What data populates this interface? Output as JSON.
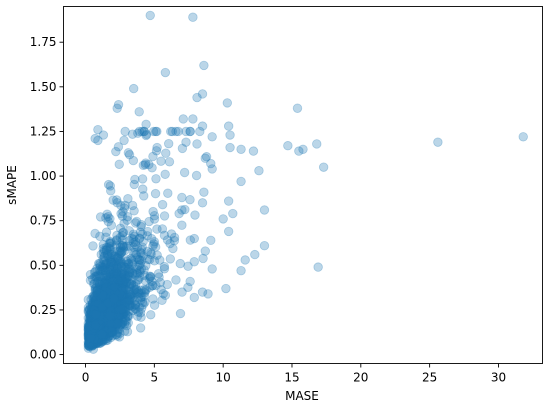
{
  "chart_data": {
    "type": "scatter",
    "title": "",
    "xlabel": "MASE",
    "ylabel": "sMAPE",
    "xlim": [
      -1.6,
      33.2
    ],
    "ylim": [
      -0.05,
      1.95
    ],
    "xticks": [
      0,
      5,
      10,
      15,
      20,
      25,
      30
    ],
    "yticks": [
      0.0,
      0.25,
      0.5,
      0.75,
      1.0,
      1.25,
      1.5,
      1.75
    ],
    "xtick_labels": [
      "0",
      "5",
      "10",
      "15",
      "20",
      "25",
      "30"
    ],
    "ytick_labels": [
      "0.00",
      "0.25",
      "0.50",
      "0.75",
      "1.00",
      "1.25",
      "1.50",
      "1.75"
    ],
    "grid": false,
    "marker_color": "#1f77b4",
    "marker_alpha": 0.3,
    "points": [
      [
        4.7,
        1.9
      ],
      [
        7.8,
        1.89
      ],
      [
        8.6,
        1.62
      ],
      [
        5.8,
        1.58
      ],
      [
        3.5,
        1.49
      ],
      [
        8.5,
        1.46
      ],
      [
        8.1,
        1.44
      ],
      [
        10.3,
        1.41
      ],
      [
        2.4,
        1.4
      ],
      [
        2.3,
        1.38
      ],
      [
        15.4,
        1.38
      ],
      [
        3.9,
        1.36
      ],
      [
        7.1,
        1.32
      ],
      [
        7.8,
        1.32
      ],
      [
        4.4,
        1.29
      ],
      [
        8.5,
        1.28
      ],
      [
        10.4,
        1.28
      ],
      [
        0.9,
        1.26
      ],
      [
        7.3,
        1.25
      ],
      [
        3.8,
        1.24
      ],
      [
        1.3,
        1.23
      ],
      [
        10.5,
        1.23
      ],
      [
        31.8,
        1.22
      ],
      [
        0.7,
        1.21
      ],
      [
        0.9,
        1.2
      ],
      [
        9.2,
        1.22
      ],
      [
        2.8,
        1.2
      ],
      [
        7.3,
        1.19
      ],
      [
        25.6,
        1.19
      ],
      [
        8.1,
        1.18
      ],
      [
        16.8,
        1.18
      ],
      [
        14.7,
        1.17
      ],
      [
        5.2,
        1.16
      ],
      [
        11.3,
        1.15
      ],
      [
        12.2,
        1.14
      ],
      [
        15.5,
        1.14
      ],
      [
        15.8,
        1.15
      ],
      [
        10.5,
        1.16
      ],
      [
        3.2,
        1.12
      ],
      [
        4.9,
        1.11
      ],
      [
        8.7,
        1.1
      ],
      [
        6.1,
        1.08
      ],
      [
        9.1,
        1.07
      ],
      [
        4.2,
        1.06
      ],
      [
        17.3,
        1.05
      ],
      [
        9.2,
        1.04
      ],
      [
        12.6,
        1.03
      ],
      [
        7.2,
        1.02
      ],
      [
        11.3,
        0.97
      ],
      [
        8.6,
        0.91
      ],
      [
        7.0,
        0.88
      ],
      [
        10.4,
        0.86
      ],
      [
        8.5,
        0.85
      ],
      [
        5.6,
        0.84
      ],
      [
        13.0,
        0.81
      ],
      [
        7.0,
        0.81
      ],
      [
        10.7,
        0.79
      ],
      [
        10.0,
        0.76
      ],
      [
        6.8,
        0.79
      ],
      [
        10.4,
        0.69
      ],
      [
        9.1,
        0.64
      ],
      [
        7.9,
        0.65
      ],
      [
        13.0,
        0.61
      ],
      [
        8.7,
        0.58
      ],
      [
        12.3,
        0.56
      ],
      [
        11.6,
        0.53
      ],
      [
        16.9,
        0.49
      ],
      [
        9.2,
        0.48
      ],
      [
        11.3,
        0.47
      ],
      [
        10.2,
        0.37
      ],
      [
        8.5,
        0.35
      ],
      [
        8.9,
        0.34
      ],
      [
        7.9,
        0.32
      ],
      [
        6.9,
        0.23
      ],
      [
        7.6,
        0.41
      ],
      [
        7.9,
        0.52
      ]
    ],
    "cluster": {
      "count": 2300,
      "seed": 20240607
    }
  }
}
